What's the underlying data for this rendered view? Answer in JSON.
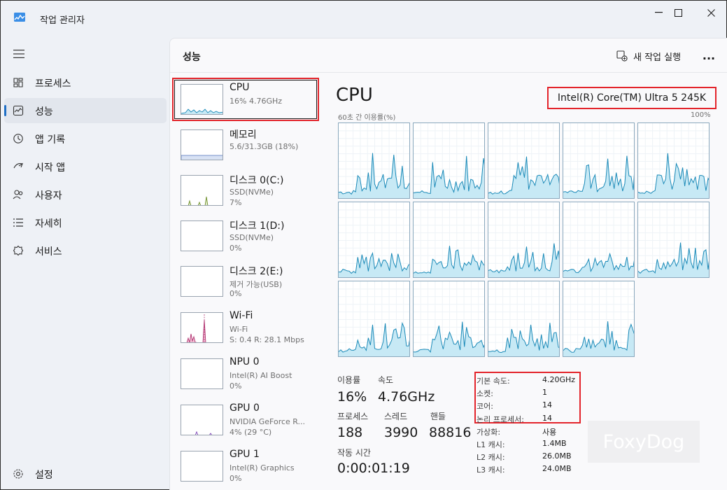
{
  "window": {
    "title": "작업 관리자"
  },
  "sidebar": {
    "items": [
      {
        "label": "프로세스",
        "icon": "processes-icon"
      },
      {
        "label": "성능",
        "icon": "performance-icon"
      },
      {
        "label": "앱 기록",
        "icon": "app-history-icon"
      },
      {
        "label": "시작 앱",
        "icon": "startup-apps-icon"
      },
      {
        "label": "사용자",
        "icon": "users-icon"
      },
      {
        "label": "자세히",
        "icon": "details-icon"
      },
      {
        "label": "서비스",
        "icon": "services-icon"
      }
    ],
    "settings_label": "설정"
  },
  "header": {
    "title": "성능",
    "run_task_label": "새 작업 실행",
    "more_label": "..."
  },
  "devices": [
    {
      "name": "CPU",
      "line1": "16% 4.76GHz",
      "line2": ""
    },
    {
      "name": "메모리",
      "line1": "5.6/31.3GB (18%)",
      "line2": ""
    },
    {
      "name": "디스크 0(C:)",
      "line1": "SSD(NVMe)",
      "line2": "7%"
    },
    {
      "name": "디스크 1(D:)",
      "line1": "SSD(NVMe)",
      "line2": "0%"
    },
    {
      "name": "디스크 2(E:)",
      "line1": "제거 가능(USB)",
      "line2": "0%"
    },
    {
      "name": "Wi-Fi",
      "line1": "Wi-Fi",
      "line2": "S: 0.4 R: 28.1 Mbps"
    },
    {
      "name": "NPU 0",
      "line1": "Intel(R) AI Boost",
      "line2": "0%"
    },
    {
      "name": "GPU 0",
      "line1": "NVIDIA GeForce R...",
      "line2": "4% (29 °C)"
    },
    {
      "name": "GPU 1",
      "line1": "Intel(R) Graphics",
      "line2": "0%"
    }
  ],
  "cpu": {
    "title": "CPU",
    "model": "Intel(R) Core(TM) Ultra 5 245K",
    "graph_label": "60초 간 이용률(%)",
    "graph_max": "100%",
    "core_count": 14,
    "stats": {
      "utilization_label": "이용률",
      "utilization": "16%",
      "speed_label": "속도",
      "speed": "4.76GHz",
      "processes_label": "프로세스",
      "processes": "188",
      "threads_label": "스레드",
      "threads": "3990",
      "handles_label": "핸들",
      "handles": "88816",
      "uptime_label": "작동 시간",
      "uptime": "0:00:01:19"
    },
    "specs": [
      {
        "k": "기본 속도:",
        "v": "4.20GHz"
      },
      {
        "k": "소켓:",
        "v": "1"
      },
      {
        "k": "코어:",
        "v": "14"
      },
      {
        "k": "논리 프로세서:",
        "v": "14"
      },
      {
        "k": "가상화:",
        "v": "사용"
      },
      {
        "k": "L1 캐시:",
        "v": "1.4MB"
      },
      {
        "k": "L2 캐시:",
        "v": "26.0MB"
      },
      {
        "k": "L3 캐시:",
        "v": "24.0MB"
      }
    ]
  },
  "watermark": "FoxyDog",
  "colors": {
    "accent": "#1f6fc5",
    "highlight": "#e3242b",
    "cpu_line": "#1b8ab8",
    "cpu_fill": "#c7e9f5"
  }
}
